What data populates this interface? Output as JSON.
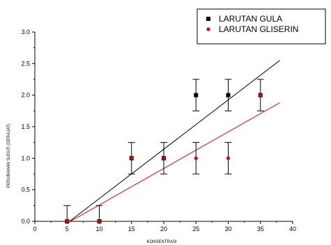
{
  "chart_data": {
    "type": "scatter",
    "title": "",
    "xlabel": "KONSENTRASI",
    "ylabel": "PERUBAHAN SUDUT (DERAJAT)",
    "xlim": [
      0,
      40
    ],
    "ylim": [
      0,
      3.0
    ],
    "x_ticks": [
      "0",
      "5",
      "10",
      "15",
      "20",
      "25",
      "30",
      "35",
      "40"
    ],
    "y_ticks": [
      "0.0",
      "0.5",
      "1.0",
      "1.5",
      "2.0",
      "2.5",
      "3.0"
    ],
    "grid": false,
    "legend_position": "top-right",
    "series": [
      {
        "name": "LARUTAN GULA",
        "marker": "square",
        "color": "#000000",
        "x": [
          5,
          10,
          15,
          20,
          25,
          30,
          35
        ],
        "y": [
          0,
          0,
          1.0,
          1.0,
          2.0,
          2.0,
          2.0
        ],
        "error": [
          0.25,
          0.25,
          0.25,
          0.25,
          0.25,
          0.25,
          0.25
        ],
        "fit": {
          "x": [
            5,
            38
          ],
          "y": [
            -0.03,
            2.55
          ]
        }
      },
      {
        "name": "LARUTAN GLISERIN",
        "marker": "circle",
        "color": "#e00000",
        "x": [
          5,
          10,
          15,
          20,
          25,
          30,
          35
        ],
        "y": [
          0,
          0,
          1.0,
          1.0,
          1.0,
          1.0,
          2.0
        ],
        "error": [
          0.25,
          0.25,
          0.25,
          0.25,
          0.25,
          0.25,
          0.25
        ],
        "fit": {
          "x": [
            5,
            38
          ],
          "y": [
            -0.03,
            1.88
          ]
        }
      }
    ]
  }
}
